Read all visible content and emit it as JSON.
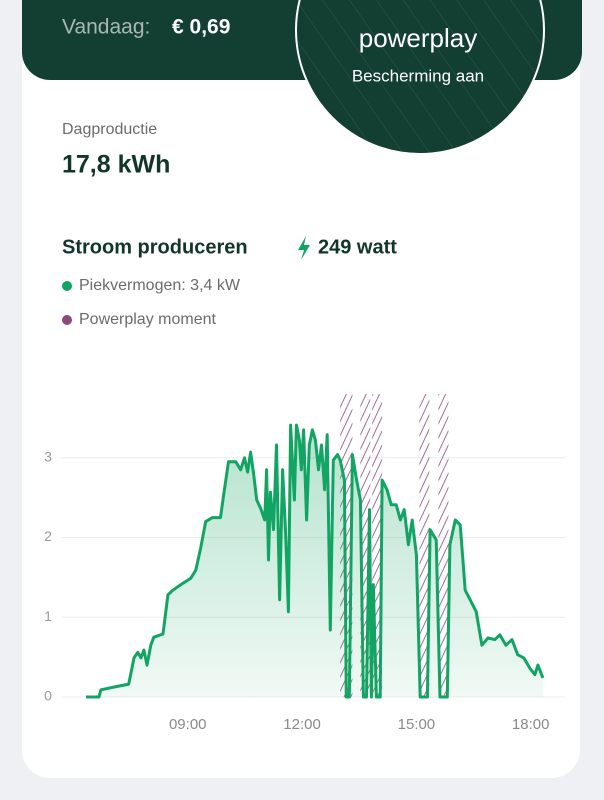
{
  "header": {
    "today_label": "Vandaag:",
    "today_value": "€ 0,69"
  },
  "badge": {
    "title": "powerplay",
    "status": "Bescherming aan"
  },
  "production": {
    "label": "Dagproductie",
    "value": "17,8 kWh"
  },
  "chart_data": {
    "type": "line",
    "title": "Stroom produceren",
    "current": "249 watt",
    "x": [
      6.33,
      6.67,
      6.72,
      7.12,
      7.45,
      7.59,
      7.69,
      7.77,
      7.85,
      7.93,
      8.03,
      8.11,
      8.35,
      8.48,
      8.61,
      8.82,
      9.08,
      9.21,
      9.34,
      9.47,
      9.65,
      9.86,
      9.94,
      10.07,
      10.26,
      10.39,
      10.49,
      10.57,
      10.65,
      10.73,
      10.81,
      10.91,
      11.02,
      11.07,
      11.12,
      11.17,
      11.25,
      11.33,
      11.41,
      11.49,
      11.57,
      11.64,
      11.7,
      11.8,
      11.85,
      11.93,
      11.98,
      12.04,
      12.12,
      12.19,
      12.27,
      12.35,
      12.43,
      12.51,
      12.59,
      12.66,
      12.74,
      12.82,
      12.93,
      13.0,
      13.11,
      13.16,
      13.24,
      13.32,
      13.43,
      13.53,
      13.61,
      13.69,
      13.77,
      13.82,
      13.87,
      13.95,
      14.05,
      14.1,
      14.23,
      14.34,
      14.47,
      14.58,
      14.68,
      14.79,
      14.89,
      15.0,
      15.1,
      15.29,
      15.36,
      15.52,
      15.62,
      15.81,
      15.88,
      16.02,
      16.15,
      16.28,
      16.41,
      16.57,
      16.72,
      16.88,
      17.06,
      17.19,
      17.35,
      17.51,
      17.66,
      17.82,
      17.98,
      18.11,
      18.19,
      18.32
    ],
    "series": [
      {
        "name": "Piekvermogen: 3,4 kW",
        "color": "#12a463",
        "values": [
          0,
          0,
          0.09,
          0.13,
          0.16,
          0.49,
          0.56,
          0.49,
          0.59,
          0.4,
          0.65,
          0.75,
          0.79,
          1.28,
          1.34,
          1.41,
          1.49,
          1.59,
          1.87,
          2.2,
          2.25,
          2.25,
          2.53,
          2.95,
          2.95,
          2.85,
          3.0,
          2.82,
          3.07,
          2.79,
          2.47,
          2.37,
          2.22,
          2.85,
          1.72,
          2.57,
          2.1,
          3.16,
          1.22,
          2.85,
          2.03,
          1.07,
          3.41,
          2.47,
          3.41,
          3.22,
          2.85,
          3.35,
          2.22,
          3.16,
          3.35,
          3.22,
          2.85,
          3.16,
          2.6,
          3.29,
          0.84,
          2.97,
          3.04,
          2.97,
          2.72,
          0,
          0,
          3.04,
          2.72,
          2.47,
          0,
          0,
          2.35,
          0,
          1.41,
          0,
          0,
          2.72,
          2.6,
          2.41,
          2.41,
          2.22,
          2.35,
          1.91,
          2.22,
          1.78,
          0,
          0,
          2.1,
          1.97,
          0,
          0,
          1.91,
          2.22,
          2.16,
          1.34,
          1.22,
          1.07,
          0.65,
          0.74,
          0.72,
          0.78,
          0.65,
          0.72,
          0.53,
          0.49,
          0.36,
          0.28,
          0.4,
          0.24
        ]
      }
    ],
    "highlights": {
      "name": "Powerplay moment",
      "color": "#8a4b7c",
      "ranges": [
        [
          13.0,
          13.32
        ],
        [
          13.53,
          13.79
        ],
        [
          13.84,
          14.1
        ],
        [
          15.08,
          15.34
        ],
        [
          15.58,
          15.84
        ]
      ]
    },
    "xlim": [
      5.7,
      18.9
    ],
    "ylim": [
      0,
      3.8
    ],
    "xticks": [
      {
        "value": 9,
        "label": "09:00"
      },
      {
        "value": 12,
        "label": "12:00"
      },
      {
        "value": 15,
        "label": "15:00"
      },
      {
        "value": 18,
        "label": "18:00"
      }
    ],
    "yticks": [
      0,
      1,
      2,
      3
    ],
    "grid": true
  }
}
